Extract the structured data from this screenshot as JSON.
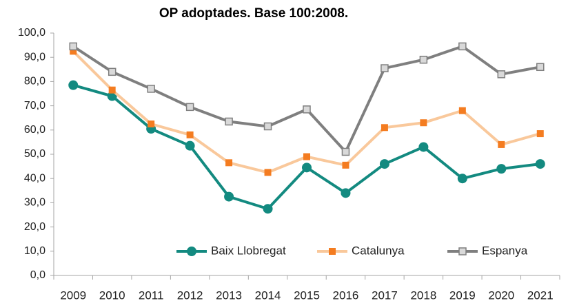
{
  "chart_data": {
    "type": "line",
    "title": "OP adoptades. Base 100:2008.",
    "categories": [
      "2009",
      "2010",
      "2011",
      "2012",
      "2013",
      "2014",
      "2015",
      "2016",
      "2017",
      "2018",
      "2019",
      "2020",
      "2021"
    ],
    "series": [
      {
        "name": "Baix Llobregat",
        "color": "#138a80",
        "marker": "circle",
        "marker_color": "#138a80",
        "values": [
          78.5,
          74,
          60.5,
          53.5,
          32.5,
          27.5,
          44.5,
          34,
          46,
          53,
          40,
          44,
          46
        ]
      },
      {
        "name": "Catalunya",
        "color": "#f9c89b",
        "marker": "square",
        "marker_color": "#f47c20",
        "values": [
          92.5,
          76.5,
          62.5,
          58,
          46.5,
          42.5,
          49,
          45.5,
          61,
          63,
          68,
          54,
          58.5
        ]
      },
      {
        "name": "Espanya",
        "color": "#7f7f7f",
        "marker": "square",
        "marker_color": "#d9d9d9",
        "values": [
          94.5,
          84,
          77,
          69.5,
          63.5,
          61.5,
          68.5,
          51,
          85.5,
          89,
          94.5,
          83,
          86
        ]
      }
    ],
    "ylim": [
      0,
      100
    ],
    "yticks": [
      {
        "value": 0,
        "label": "0,0"
      },
      {
        "value": 10,
        "label": "10,0"
      },
      {
        "value": 20,
        "label": "20,0"
      },
      {
        "value": 30,
        "label": "30,0"
      },
      {
        "value": 40,
        "label": "40,0"
      },
      {
        "value": 50,
        "label": "50,0"
      },
      {
        "value": 60,
        "label": "60,0"
      },
      {
        "value": 70,
        "label": "70,0"
      },
      {
        "value": 80,
        "label": "80,0"
      },
      {
        "value": 90,
        "label": "90,0"
      },
      {
        "value": 100,
        "label": "100,0"
      }
    ],
    "grid": false,
    "legend": "lower center"
  }
}
